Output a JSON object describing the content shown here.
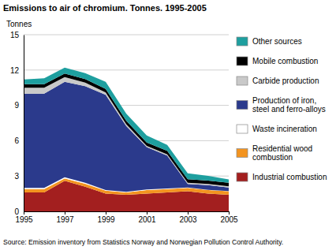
{
  "chart_data": {
    "type": "area",
    "stacked": true,
    "title": "Emissions to air of chromium. Tonnes. 1995-2005",
    "y_label": "Tonnes",
    "source": "Source: Emission inventory from Statistics Norway and Norwegian Pollution Control Authority.",
    "x": [
      1995,
      1996,
      1997,
      1998,
      1999,
      2000,
      2001,
      2002,
      2003,
      2004,
      2005
    ],
    "xlim": [
      1995,
      2005
    ],
    "xticks": [
      1995,
      1997,
      1999,
      2001,
      2003,
      2005
    ],
    "ylim": [
      0,
      15
    ],
    "yticks": [
      0,
      3,
      6,
      9,
      12,
      15
    ],
    "grid": true,
    "legend": "right",
    "series": [
      {
        "name": "Industrial combustion",
        "color": "#a31f1f",
        "values": [
          1.6,
          1.6,
          2.6,
          2.1,
          1.5,
          1.4,
          1.5,
          1.6,
          1.7,
          1.5,
          1.4
        ]
      },
      {
        "name": "Residential wood combustion",
        "color": "#f39420",
        "values": [
          0.3,
          0.3,
          0.2,
          0.25,
          0.25,
          0.2,
          0.3,
          0.3,
          0.3,
          0.3,
          0.3
        ]
      },
      {
        "name": "Waste incineration",
        "color": "#ffffff",
        "values": [
          0.1,
          0.1,
          0.1,
          0.08,
          0.05,
          0.05,
          0.05,
          0.04,
          0.03,
          0.02,
          0.02
        ]
      },
      {
        "name": "Production of iron, steel and ferro-alloys",
        "color": "#2b3a8c",
        "values": [
          8.0,
          8.0,
          8.1,
          8.2,
          8.1,
          5.6,
          3.6,
          2.8,
          0.3,
          0.4,
          0.3
        ]
      },
      {
        "name": "Carbide production",
        "color": "#c9c9c9",
        "values": [
          0.5,
          0.5,
          0.4,
          0.3,
          0.2,
          0.15,
          0.1,
          0.1,
          0.1,
          0.1,
          0.1
        ]
      },
      {
        "name": "Mobile combustion",
        "color": "#000000",
        "values": [
          0.3,
          0.3,
          0.3,
          0.3,
          0.3,
          0.3,
          0.3,
          0.3,
          0.3,
          0.3,
          0.3
        ]
      },
      {
        "name": "Other sources",
        "color": "#1e9f9f",
        "values": [
          0.4,
          0.5,
          0.5,
          0.5,
          0.6,
          0.6,
          0.6,
          0.5,
          0.5,
          0.4,
          0.3
        ]
      }
    ]
  }
}
